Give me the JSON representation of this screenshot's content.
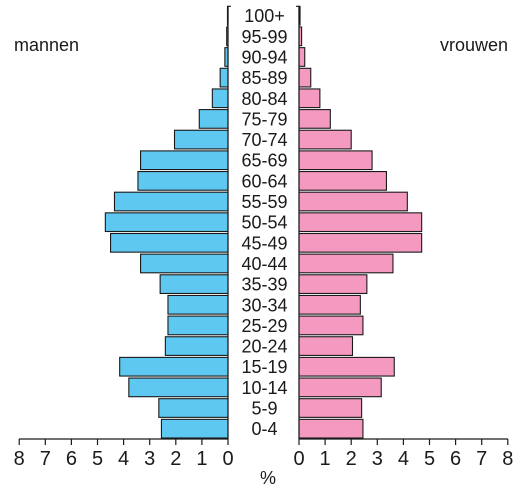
{
  "chart_data": {
    "type": "bar",
    "orientation": "horizontal",
    "layout": "population-pyramid",
    "labels": {
      "left": "mannen",
      "right": "vrouwen",
      "unit": "%"
    },
    "categories": [
      "0-4",
      "5-9",
      "10-14",
      "15-19",
      "20-24",
      "25-29",
      "30-34",
      "35-39",
      "40-44",
      "45-49",
      "50-54",
      "55-59",
      "60-64",
      "65-69",
      "70-74",
      "75-79",
      "80-84",
      "85-89",
      "90-94",
      "95-99",
      "100+"
    ],
    "series": [
      {
        "name": "mannen",
        "color": "#5ec8f0",
        "values": [
          2.55,
          2.65,
          3.8,
          4.15,
          2.4,
          2.3,
          2.3,
          2.6,
          3.35,
          4.5,
          4.7,
          4.35,
          3.45,
          3.35,
          2.05,
          1.1,
          0.6,
          0.3,
          0.12,
          0.05,
          0.02
        ]
      },
      {
        "name": "vrouwen",
        "color": "#f49ac0",
        "values": [
          2.45,
          2.4,
          3.15,
          3.65,
          2.05,
          2.45,
          2.35,
          2.6,
          3.6,
          4.7,
          4.7,
          4.15,
          3.35,
          2.8,
          2.0,
          1.2,
          0.8,
          0.45,
          0.22,
          0.1,
          0.04
        ]
      }
    ],
    "xlim": [
      0,
      8
    ],
    "xticks": [
      "0",
      "1",
      "2",
      "3",
      "4",
      "5",
      "6",
      "7",
      "8"
    ]
  }
}
